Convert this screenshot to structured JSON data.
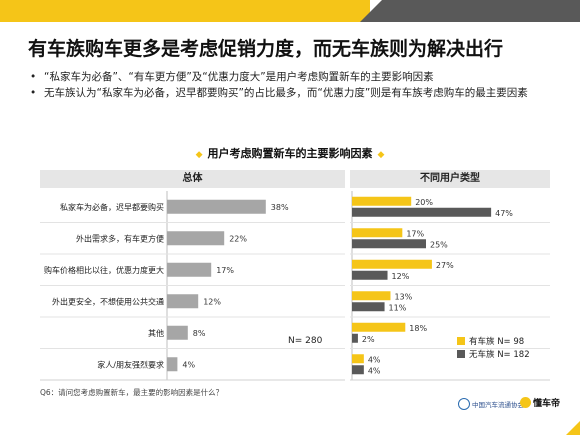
{
  "header": {
    "title": "有车族购车更多是考虑促销力度，而无车族则为解决出行"
  },
  "bullets": [
    "“私家车为必备”、“有车更方便”及“优惠力度大”是用户考虑购置新车的主要影响因素",
    "无车族认为“私家车为必备，迟早都要购买”的占比最多，而“优惠力度”则是有车族考虑购车的最主要因素"
  ],
  "bullet_glyph": "•",
  "chart_title": "用户考虑购置新车的主要影响因素",
  "title_glyph": "◆",
  "col_headers": {
    "left": "总体",
    "right": "不同用户类型"
  },
  "n_total": "N= 280",
  "note": "Q6：请问您考虑购置新车，最主要的影响因素是什么？",
  "footer": {
    "logo1": "中国汽车流通协会",
    "logo2": "懂车帝"
  },
  "colors": {
    "gold": "#f5c518",
    "dark": "#595959",
    "gray_bar": "#a6a6a6",
    "header_bg": "#e6e6e6"
  },
  "chart_data": [
    {
      "type": "bar",
      "orientation": "horizontal",
      "title": "总体",
      "categories": [
        "私家车为必备，迟早都要购买",
        "外出需求多，有车更方便",
        "购车价格相比以往，优惠力度更大",
        "外出更安全，不想使用公共交通",
        "其他",
        "家人/朋友强烈要求"
      ],
      "values": [
        38,
        22,
        17,
        12,
        8,
        4
      ],
      "value_labels": [
        "38%",
        "22%",
        "17%",
        "12%",
        "8%",
        "4%"
      ],
      "unit": "%"
    },
    {
      "type": "bar",
      "orientation": "horizontal",
      "title": "不同用户类型",
      "categories": [
        "私家车为必备，迟早都要购买",
        "外出需求多，有车更方便",
        "购车价格相比以往，优惠力度更大",
        "外出更安全，不想使用公共交通",
        "其他",
        "家人/朋友强烈要求"
      ],
      "series": [
        {
          "name": "有车族 N= 98",
          "color": "#f5c518",
          "values": [
            20,
            17,
            27,
            13,
            18,
            4
          ],
          "labels": [
            "20%",
            "17%",
            "27%",
            "13%",
            "18%",
            "4%"
          ]
        },
        {
          "name": "无车族 N= 182",
          "color": "#595959",
          "values": [
            47,
            25,
            12,
            11,
            2,
            4
          ],
          "labels": [
            "47%",
            "25%",
            "12%",
            "11%",
            "2%",
            "4%"
          ]
        }
      ],
      "legend": "bottom-right",
      "unit": "%"
    }
  ]
}
